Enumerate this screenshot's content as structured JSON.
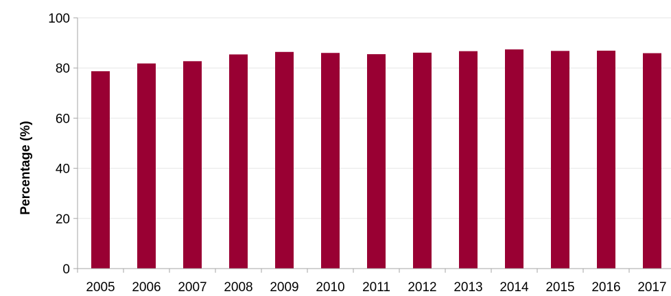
{
  "chart_data": {
    "type": "bar",
    "title": "",
    "xlabel": "",
    "ylabel": "Percentage (%)",
    "categories": [
      "2005",
      "2006",
      "2007",
      "2008",
      "2009",
      "2010",
      "2011",
      "2012",
      "2013",
      "2014",
      "2015",
      "2016",
      "2017"
    ],
    "values": [
      78.7,
      81.8,
      82.7,
      85.4,
      86.4,
      86.0,
      85.5,
      86.1,
      86.7,
      87.4,
      86.8,
      86.9,
      85.9
    ],
    "ylim": [
      0,
      100
    ],
    "yticks": [
      0,
      20,
      40,
      60,
      80,
      100
    ],
    "grid": "horizontal",
    "legend": "none",
    "bar_color": "#990033",
    "grid_color": "#e6e6e6",
    "axis_color": "#a6a6a6"
  }
}
